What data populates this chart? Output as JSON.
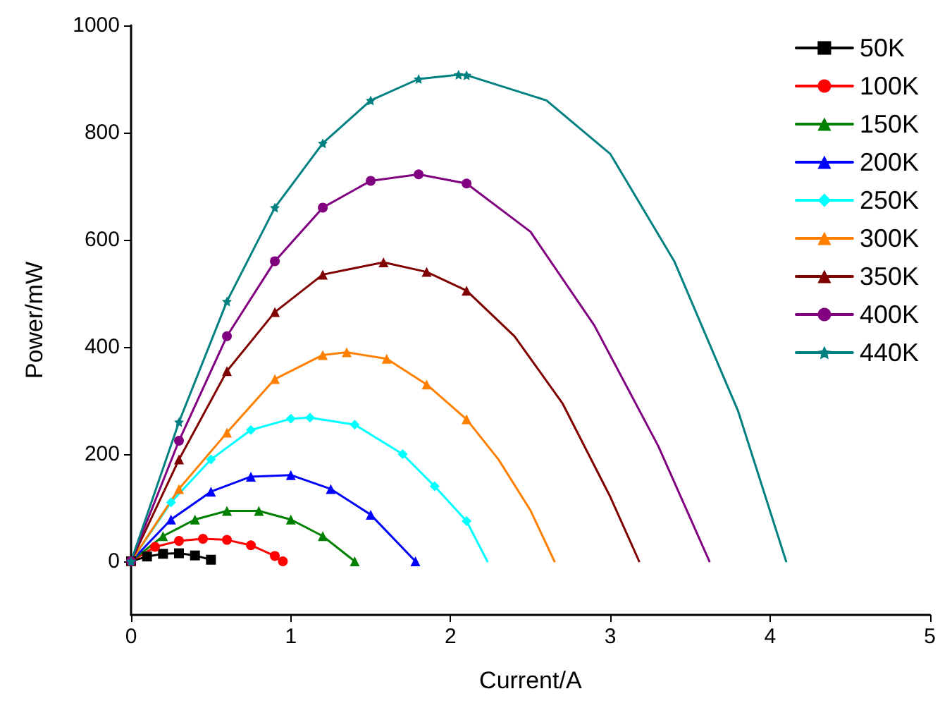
{
  "chart_data": {
    "type": "line",
    "xlabel": "Current/A",
    "ylabel": "Power/mW",
    "xlim": [
      0,
      5
    ],
    "xticks": [
      0,
      1,
      2,
      3,
      4,
      5
    ],
    "ylim": [
      -100,
      1000
    ],
    "yticks": [
      0,
      200,
      400,
      600,
      800,
      1000
    ],
    "grid": false,
    "legend": "top right",
    "line_style": "solid",
    "series": [
      {
        "name": "50K",
        "color": "#000000",
        "marker": "square",
        "x": [
          0,
          0.1,
          0.2,
          0.3,
          0.4,
          0.5
        ],
        "values": [
          0,
          9,
          14,
          15,
          11,
          3
        ]
      },
      {
        "name": "100K",
        "color": "#ff0000",
        "marker": "circle",
        "x": [
          0,
          0.15,
          0.3,
          0.45,
          0.6,
          0.75,
          0.9,
          0.95
        ],
        "values": [
          0,
          27,
          38,
          42,
          40,
          30,
          10,
          0
        ]
      },
      {
        "name": "150K",
        "color": "#008000",
        "marker": "triangle",
        "x": [
          0,
          0.2,
          0.4,
          0.6,
          0.8,
          1.0,
          1.2,
          1.4
        ],
        "values": [
          0,
          47,
          78,
          94,
          94,
          78,
          47,
          0
        ]
      },
      {
        "name": "200K",
        "color": "#0000ff",
        "marker": "triangle",
        "x": [
          0,
          0.25,
          0.5,
          0.75,
          1.0,
          1.25,
          1.5,
          1.78
        ],
        "values": [
          0,
          78,
          130,
          158,
          161,
          135,
          87,
          0
        ]
      },
      {
        "name": "250K",
        "color": "#00ffff",
        "marker": "diamond",
        "x": [
          0,
          0.25,
          0.5,
          0.75,
          1.0,
          1.12,
          1.4,
          1.7,
          1.9,
          2.1
        ],
        "values": [
          0,
          110,
          190,
          245,
          266,
          268,
          255,
          200,
          140,
          75
        ]
      },
      {
        "color": "#00ffff",
        "marker": "none",
        "x": [
          2.1,
          2.23
        ],
        "values": [
          75,
          0
        ]
      },
      {
        "name": "300K",
        "color": "#ff8000",
        "marker": "triangle",
        "x": [
          0,
          0.3,
          0.6,
          0.9,
          1.2,
          1.35,
          1.6,
          1.85,
          2.1
        ],
        "values": [
          0,
          135,
          240,
          340,
          385,
          390,
          378,
          330,
          265
        ]
      },
      {
        "color": "#ff8000",
        "marker": "none",
        "x": [
          2.1,
          2.3,
          2.5,
          2.65
        ],
        "values": [
          265,
          190,
          95,
          0
        ]
      },
      {
        "name": "350K",
        "color": "#800000",
        "marker": "triangle",
        "x": [
          0,
          0.3,
          0.6,
          0.9,
          1.2,
          1.58,
          1.85,
          2.1
        ],
        "values": [
          0,
          190,
          355,
          465,
          535,
          558,
          540,
          505
        ]
      },
      {
        "color": "#800000",
        "marker": "none",
        "x": [
          2.1,
          2.4,
          2.7,
          3.0,
          3.18
        ],
        "values": [
          505,
          420,
          295,
          120,
          0
        ]
      },
      {
        "name": "400K",
        "color": "#800080",
        "marker": "circle",
        "x": [
          0,
          0.3,
          0.6,
          0.9,
          1.2,
          1.5,
          1.8,
          2.1
        ],
        "values": [
          0,
          225,
          420,
          560,
          660,
          710,
          722,
          705
        ]
      },
      {
        "color": "#800080",
        "marker": "none",
        "x": [
          2.1,
          2.5,
          2.9,
          3.3,
          3.62
        ],
        "values": [
          705,
          615,
          440,
          215,
          0
        ]
      },
      {
        "name": "440K",
        "color": "#008080",
        "marker": "star",
        "x": [
          0,
          0.3,
          0.6,
          0.9,
          1.2,
          1.5,
          1.8,
          2.05,
          2.1
        ],
        "values": [
          0,
          260,
          485,
          660,
          780,
          860,
          900,
          908,
          907
        ]
      },
      {
        "color": "#008080",
        "marker": "none",
        "x": [
          2.1,
          2.6,
          3.0,
          3.4,
          3.8,
          4.1
        ],
        "values": [
          907,
          860,
          760,
          560,
          280,
          0
        ]
      }
    ]
  }
}
